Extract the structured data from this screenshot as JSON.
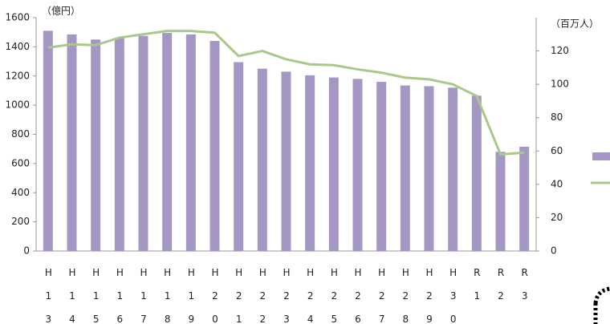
{
  "chart_data": {
    "type": "bar_line",
    "y_unit_label": "（億円）",
    "y2_unit_label": "（百万人）",
    "categories": [
      "H13",
      "H14",
      "H15",
      "H16",
      "H17",
      "H18",
      "H19",
      "H20",
      "H21",
      "H22",
      "H23",
      "H24",
      "H25",
      "H26",
      "H27",
      "H28",
      "H29",
      "H30",
      "R1",
      "R2",
      "R3"
    ],
    "series": [
      {
        "type": "bar",
        "color": "#a497c3",
        "values": [
          1510,
          1485,
          1450,
          1460,
          1475,
          1495,
          1485,
          1440,
          1295,
          1250,
          1230,
          1205,
          1190,
          1180,
          1160,
          1135,
          1130,
          1120,
          1065,
          680,
          715
        ]
      },
      {
        "type": "line",
        "axis": "y2",
        "color": "#a9c98a",
        "values": [
          122,
          124,
          123.5,
          128,
          130,
          132,
          132,
          131,
          117,
          120,
          115,
          112,
          111.5,
          109,
          107,
          104,
          103,
          100,
          93,
          58,
          59
        ]
      }
    ],
    "ylim": [
      0,
      1600
    ],
    "yticks": [
      0,
      200,
      400,
      600,
      800,
      1000,
      1200,
      1400,
      1600
    ],
    "y2lim": [
      0,
      140
    ],
    "y2ticks": [
      0,
      20,
      40,
      60,
      80,
      100,
      120
    ]
  }
}
